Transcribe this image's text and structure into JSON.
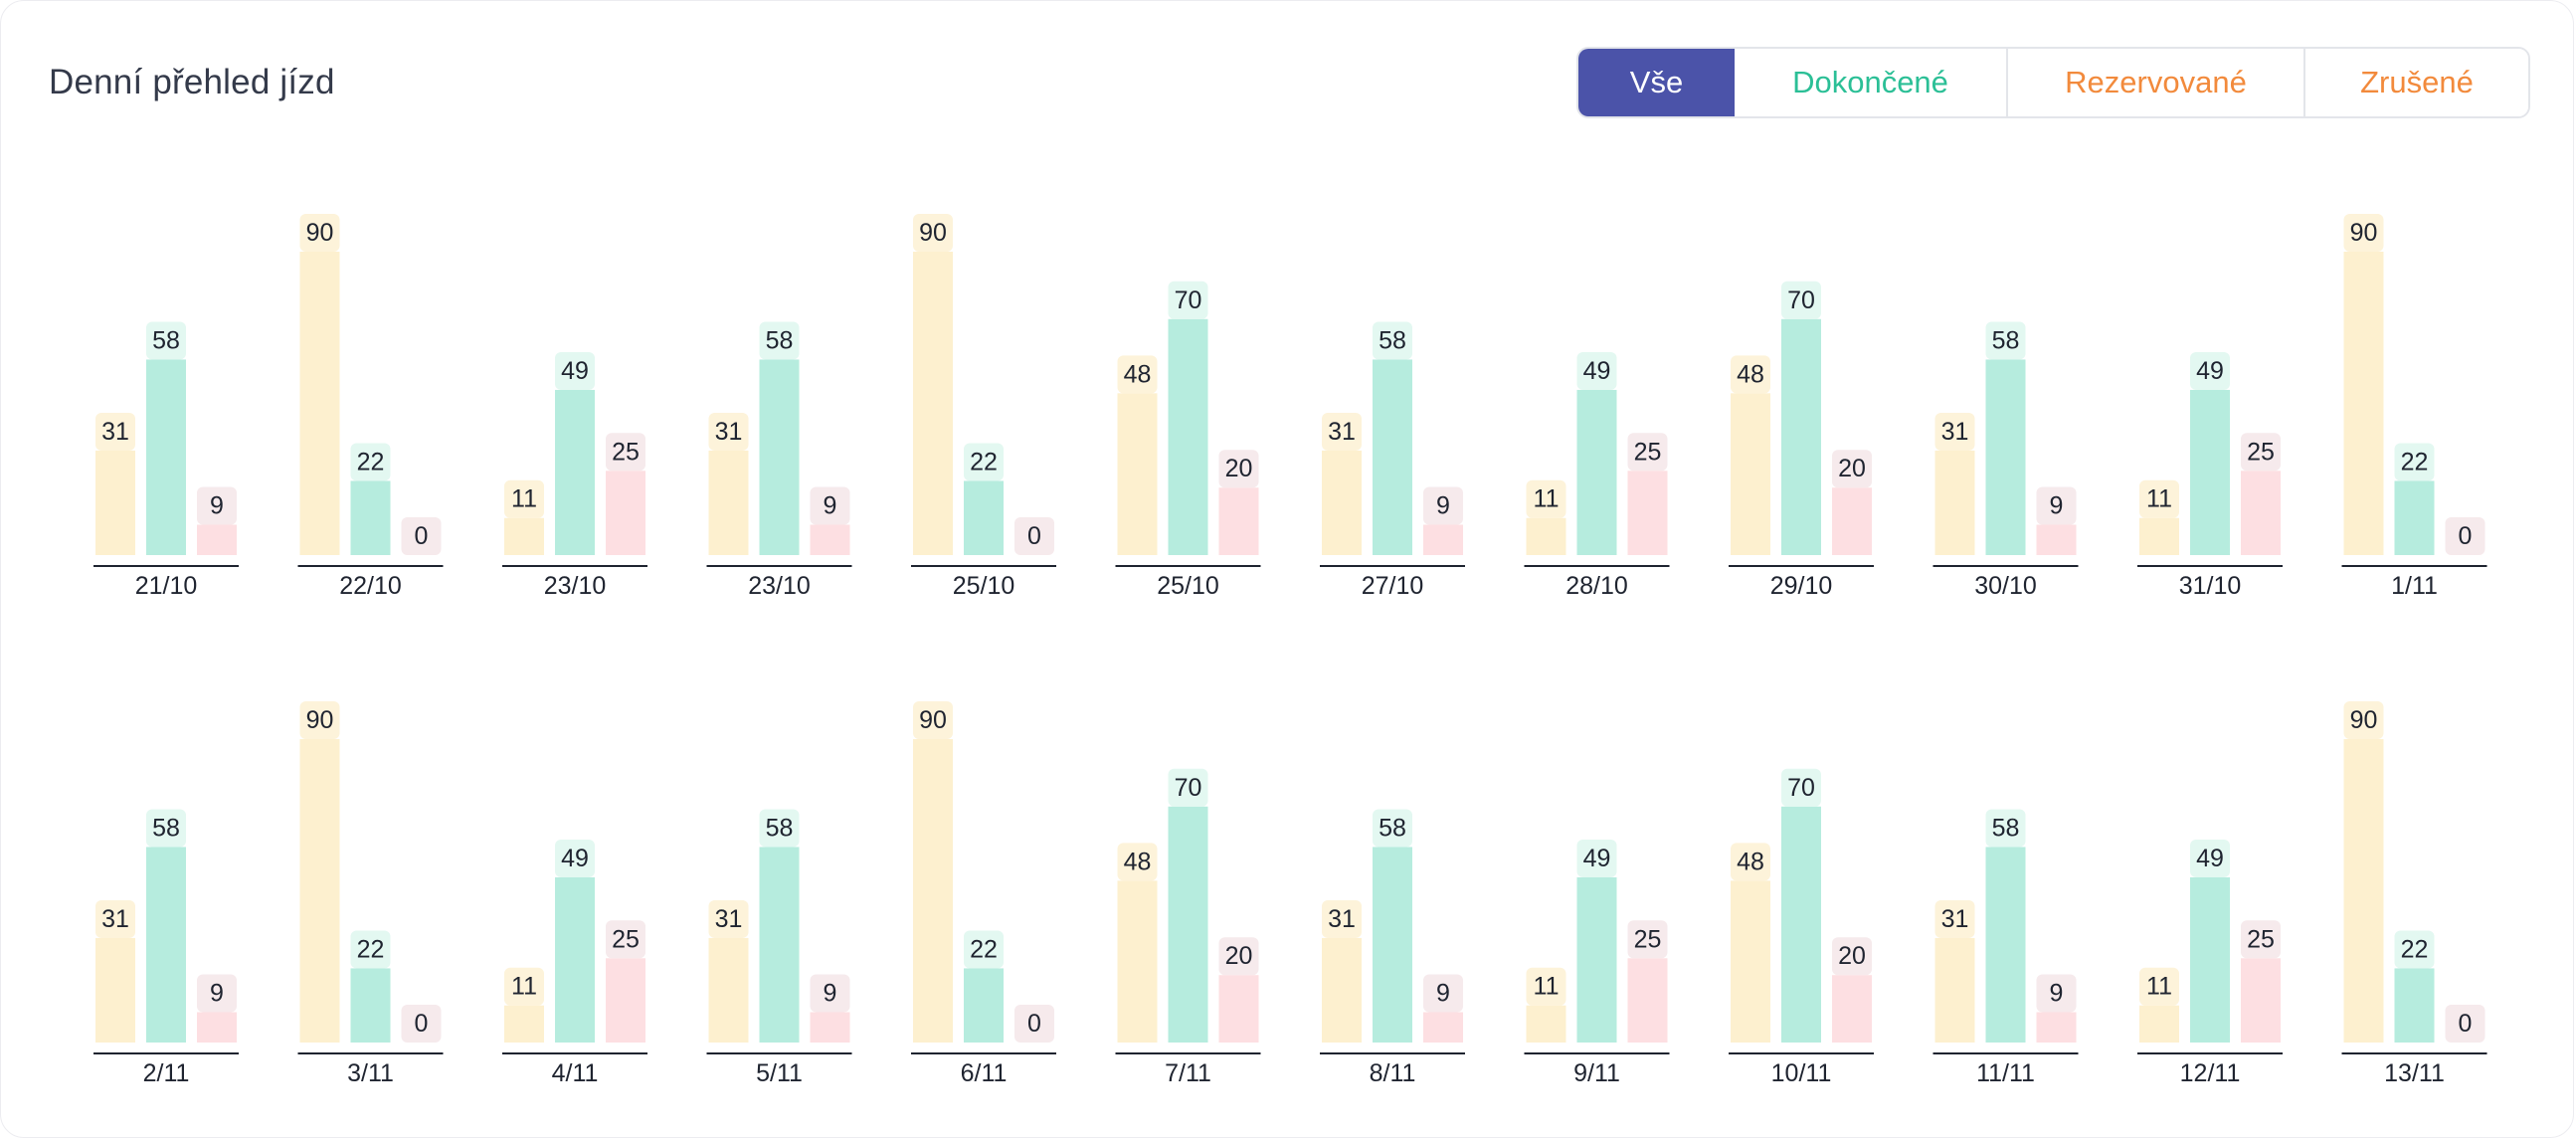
{
  "header": {
    "title": "Denní přehled jízd"
  },
  "filters": [
    {
      "label": "Vše",
      "color": "#ffffff",
      "bg": "#4b53a9",
      "active": true
    },
    {
      "label": "Dokončené",
      "color": "#2bbf96",
      "bg": "#ffffff",
      "active": false
    },
    {
      "label": "Rezervované",
      "color": "#f28a3c",
      "bg": "#ffffff",
      "active": false
    },
    {
      "label": "Zrušené",
      "color": "#f28a3c",
      "bg": "#ffffff",
      "active": false
    }
  ],
  "chart_data": {
    "type": "bar",
    "title": "Denní přehled jízd",
    "ylim": [
      0,
      90
    ],
    "grid": false,
    "series": [
      {
        "name": "Rezervované",
        "color": "#fdf0cf",
        "label_bg": "#fdf3da"
      },
      {
        "name": "Dokončené",
        "color": "#b6ecde",
        "label_bg": "#e3f8f1"
      },
      {
        "name": "Zrušené",
        "color": "#fddfe2",
        "label_bg": "#f6eaec"
      }
    ],
    "rows": [
      {
        "categories": [
          "21/10",
          "22/10",
          "23/10",
          "23/10",
          "25/10",
          "25/10",
          "27/10",
          "28/10",
          "29/10",
          "30/10",
          "31/10",
          "1/11"
        ],
        "values": [
          [
            31,
            58,
            9
          ],
          [
            90,
            22,
            0
          ],
          [
            11,
            49,
            25
          ],
          [
            31,
            58,
            9
          ],
          [
            90,
            22,
            0
          ],
          [
            48,
            70,
            20
          ],
          [
            31,
            58,
            9
          ],
          [
            11,
            49,
            25
          ],
          [
            48,
            70,
            20
          ],
          [
            31,
            58,
            9
          ],
          [
            11,
            49,
            25
          ],
          [
            90,
            22,
            0
          ]
        ]
      },
      {
        "categories": [
          "2/11",
          "3/11",
          "4/11",
          "5/11",
          "6/11",
          "7/11",
          "8/11",
          "9/11",
          "10/11",
          "11/11",
          "12/11",
          "13/11"
        ],
        "values": [
          [
            31,
            58,
            9
          ],
          [
            90,
            22,
            0
          ],
          [
            11,
            49,
            25
          ],
          [
            31,
            58,
            9
          ],
          [
            90,
            22,
            0
          ],
          [
            48,
            70,
            20
          ],
          [
            31,
            58,
            9
          ],
          [
            11,
            49,
            25
          ],
          [
            48,
            70,
            20
          ],
          [
            31,
            58,
            9
          ],
          [
            11,
            49,
            25
          ],
          [
            90,
            22,
            0
          ]
        ]
      }
    ]
  }
}
